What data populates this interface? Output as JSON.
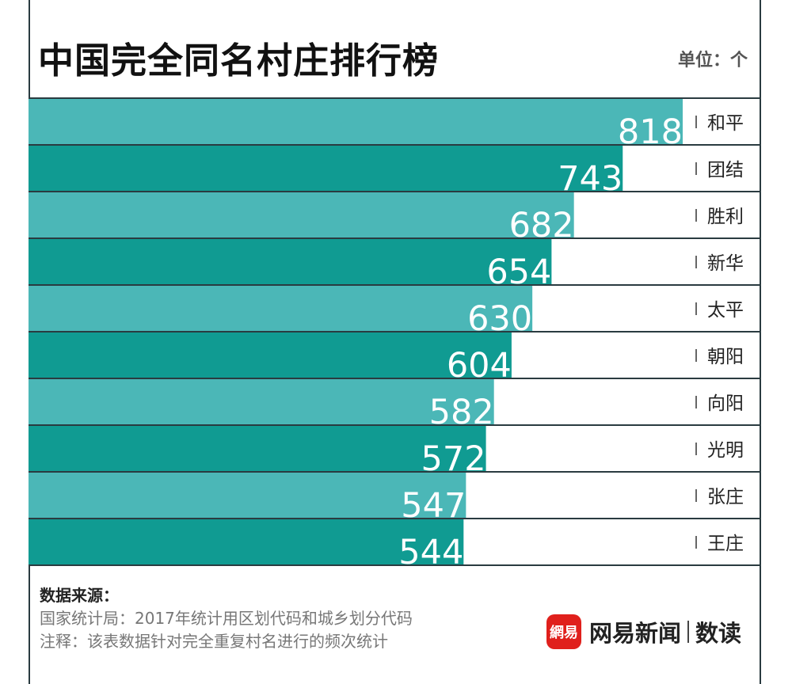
{
  "header": {
    "title": "中国完全同名村庄排行榜",
    "unit": "单位：个"
  },
  "colors": {
    "bar_light": "#4bb7b7",
    "bar_dark": "#109b92",
    "divider": "#2a3b40"
  },
  "chart_data": {
    "type": "bar",
    "orientation": "horizontal",
    "title": "中国完全同名村庄排行榜",
    "unit": "单位：个",
    "categories": [
      "和平",
      "团结",
      "胜利",
      "新华",
      "太平",
      "朝阳",
      "向阳",
      "光明",
      "张庄",
      "王庄"
    ],
    "values": [
      818,
      743,
      682,
      654,
      630,
      604,
      582,
      572,
      547,
      544
    ],
    "grid": false,
    "legend": "none"
  },
  "footer": {
    "source_title": "数据来源：",
    "source_text": "国家统计局：2017年统计用区划代码和城乡划分代码",
    "note_text": "注释：该表数据针对完全重复村名进行的频次统计"
  },
  "brand": {
    "logo_text": "網易",
    "name": "网易新闻",
    "column": "数读"
  }
}
